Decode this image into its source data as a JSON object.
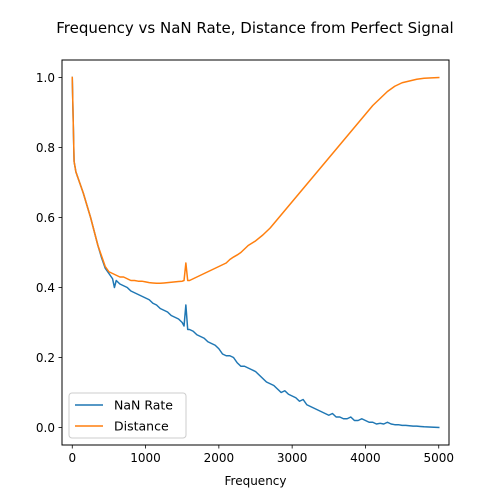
{
  "chart_data": {
    "type": "line",
    "title": "Frequency vs NaN Rate, Distance from Perfect Signal",
    "xlabel": "Frequency",
    "ylabel": "",
    "xlim": [
      -140,
      5140
    ],
    "ylim": [
      -0.05,
      1.05
    ],
    "x_ticks": [
      0,
      1000,
      2000,
      3000,
      4000,
      5000
    ],
    "y_ticks": [
      0.0,
      0.2,
      0.4,
      0.6,
      0.8,
      1.0
    ],
    "x_tick_labels": [
      "0",
      "1000",
      "2000",
      "3000",
      "4000",
      "5000"
    ],
    "y_tick_labels": [
      "0.0",
      "0.2",
      "0.4",
      "0.6",
      "0.8",
      "1.0"
    ],
    "grid": false,
    "legend_position": "lower-left",
    "series": [
      {
        "name": "NaN Rate",
        "color": "#1f77b4",
        "x": [
          0,
          25,
          50,
          100,
          150,
          200,
          250,
          300,
          350,
          400,
          450,
          500,
          550,
          575,
          600,
          650,
          700,
          750,
          800,
          850,
          900,
          950,
          1000,
          1050,
          1100,
          1150,
          1200,
          1250,
          1300,
          1350,
          1400,
          1450,
          1500,
          1525,
          1550,
          1575,
          1600,
          1650,
          1700,
          1750,
          1800,
          1850,
          1900,
          1950,
          2000,
          2050,
          2100,
          2150,
          2200,
          2250,
          2300,
          2350,
          2400,
          2450,
          2500,
          2550,
          2600,
          2650,
          2700,
          2750,
          2800,
          2850,
          2900,
          2950,
          3000,
          3050,
          3100,
          3150,
          3200,
          3250,
          3300,
          3350,
          3400,
          3450,
          3500,
          3550,
          3600,
          3650,
          3700,
          3750,
          3800,
          3850,
          3900,
          3950,
          4000,
          4050,
          4100,
          4150,
          4200,
          4250,
          4300,
          4350,
          4400,
          4450,
          4500,
          4550,
          4600,
          4650,
          4700,
          4750,
          4800,
          4900,
          5000
        ],
        "y": [
          1.0,
          0.76,
          0.73,
          0.7,
          0.67,
          0.635,
          0.6,
          0.56,
          0.52,
          0.485,
          0.455,
          0.44,
          0.425,
          0.4,
          0.42,
          0.41,
          0.405,
          0.4,
          0.39,
          0.385,
          0.38,
          0.375,
          0.37,
          0.365,
          0.355,
          0.35,
          0.34,
          0.335,
          0.33,
          0.32,
          0.315,
          0.31,
          0.3,
          0.29,
          0.35,
          0.28,
          0.28,
          0.275,
          0.265,
          0.26,
          0.255,
          0.245,
          0.24,
          0.235,
          0.225,
          0.21,
          0.205,
          0.205,
          0.2,
          0.185,
          0.175,
          0.175,
          0.17,
          0.165,
          0.16,
          0.15,
          0.14,
          0.13,
          0.125,
          0.12,
          0.11,
          0.1,
          0.105,
          0.095,
          0.09,
          0.085,
          0.075,
          0.08,
          0.065,
          0.06,
          0.055,
          0.05,
          0.045,
          0.04,
          0.035,
          0.04,
          0.03,
          0.03,
          0.025,
          0.025,
          0.03,
          0.02,
          0.02,
          0.025,
          0.02,
          0.015,
          0.015,
          0.01,
          0.012,
          0.01,
          0.015,
          0.01,
          0.008,
          0.008,
          0.006,
          0.006,
          0.005,
          0.004,
          0.004,
          0.003,
          0.002,
          0.001,
          0.0
        ]
      },
      {
        "name": "Distance",
        "color": "#ff7f0e",
        "x": [
          0,
          25,
          50,
          100,
          150,
          200,
          250,
          300,
          350,
          400,
          450,
          500,
          550,
          600,
          650,
          700,
          750,
          800,
          850,
          900,
          950,
          1000,
          1050,
          1100,
          1150,
          1200,
          1250,
          1300,
          1350,
          1400,
          1450,
          1500,
          1525,
          1550,
          1575,
          1600,
          1650,
          1700,
          1750,
          1800,
          1850,
          1900,
          1950,
          2000,
          2050,
          2100,
          2150,
          2200,
          2250,
          2300,
          2350,
          2400,
          2500,
          2600,
          2700,
          2800,
          2900,
          3000,
          3100,
          3200,
          3300,
          3400,
          3500,
          3600,
          3700,
          3800,
          3900,
          4000,
          4100,
          4200,
          4300,
          4400,
          4500,
          4600,
          4700,
          4800,
          4900,
          5000
        ],
        "y": [
          1.0,
          0.76,
          0.73,
          0.7,
          0.67,
          0.635,
          0.6,
          0.56,
          0.52,
          0.49,
          0.46,
          0.445,
          0.44,
          0.435,
          0.43,
          0.43,
          0.425,
          0.42,
          0.42,
          0.418,
          0.418,
          0.416,
          0.414,
          0.413,
          0.412,
          0.412,
          0.413,
          0.414,
          0.415,
          0.416,
          0.417,
          0.418,
          0.42,
          0.47,
          0.42,
          0.42,
          0.425,
          0.43,
          0.435,
          0.44,
          0.445,
          0.45,
          0.455,
          0.46,
          0.465,
          0.47,
          0.48,
          0.487,
          0.493,
          0.5,
          0.51,
          0.52,
          0.533,
          0.55,
          0.57,
          0.595,
          0.62,
          0.645,
          0.67,
          0.695,
          0.72,
          0.745,
          0.77,
          0.795,
          0.82,
          0.845,
          0.87,
          0.895,
          0.92,
          0.94,
          0.96,
          0.975,
          0.985,
          0.99,
          0.995,
          0.998,
          0.999,
          1.0
        ]
      }
    ]
  }
}
